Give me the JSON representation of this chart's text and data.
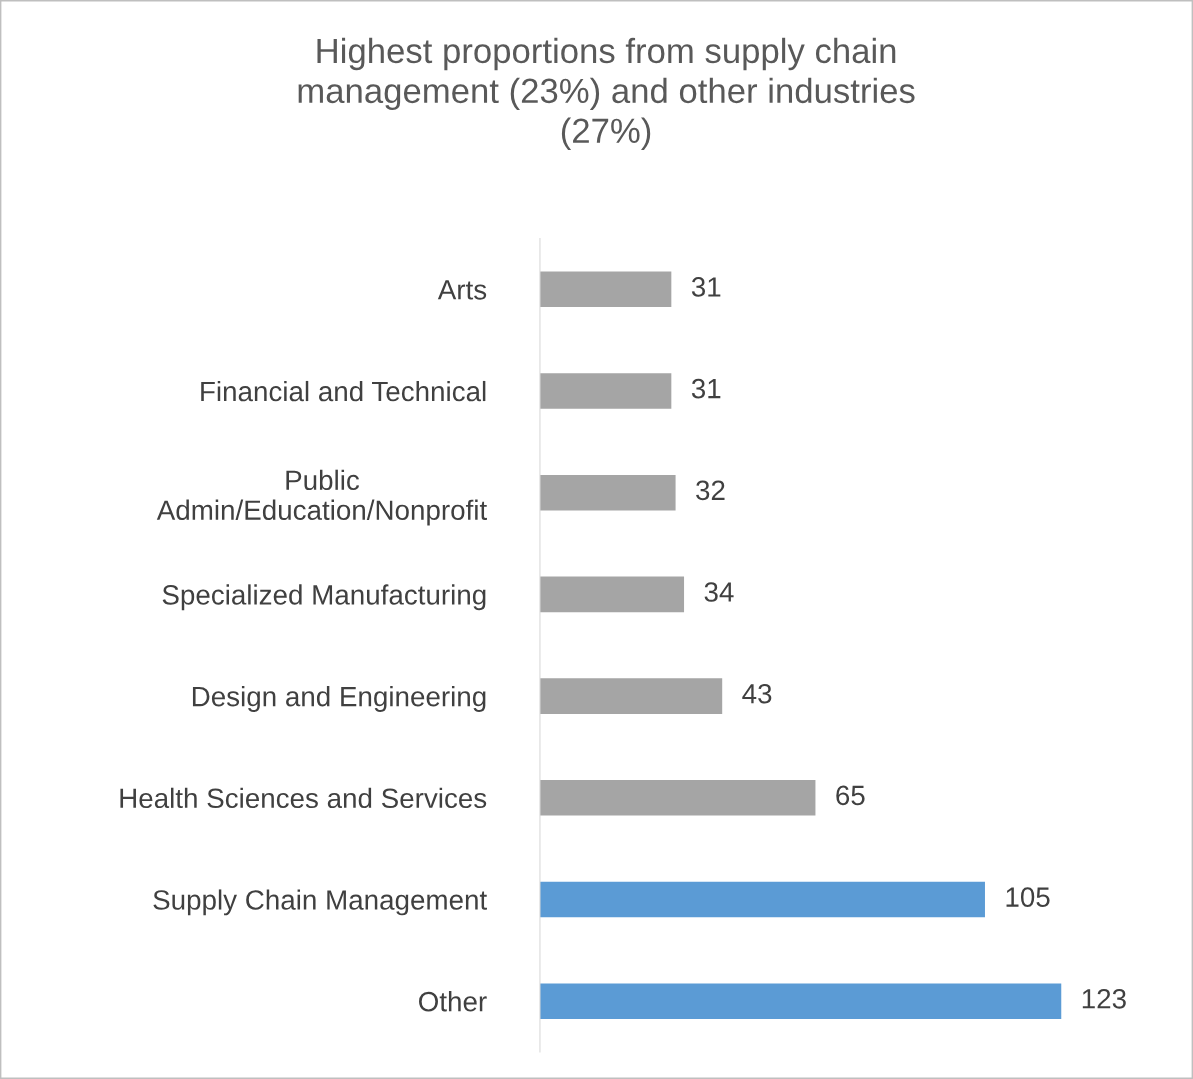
{
  "chart_data": {
    "type": "bar",
    "orientation": "horizontal",
    "title": "Highest proportions from supply chain\nmanagement (23%) and other industries\n(27%)",
    "categories": [
      "Arts",
      "Financial and Technical",
      "Public\nAdmin/Education/Nonprofit",
      "Specialized Manufacturing",
      "Design and Engineering",
      "Health Sciences and Services",
      "Supply Chain Management",
      "Other"
    ],
    "values": [
      31,
      31,
      32,
      34,
      43,
      65,
      105,
      123
    ],
    "colors": [
      "#a5a5a5",
      "#a5a5a5",
      "#a5a5a5",
      "#a5a5a5",
      "#a5a5a5",
      "#a5a5a5",
      "#5b9bd5",
      "#5b9bd5"
    ],
    "data_labels": true,
    "grid": false,
    "legend": false,
    "tick_labels": "y"
  }
}
